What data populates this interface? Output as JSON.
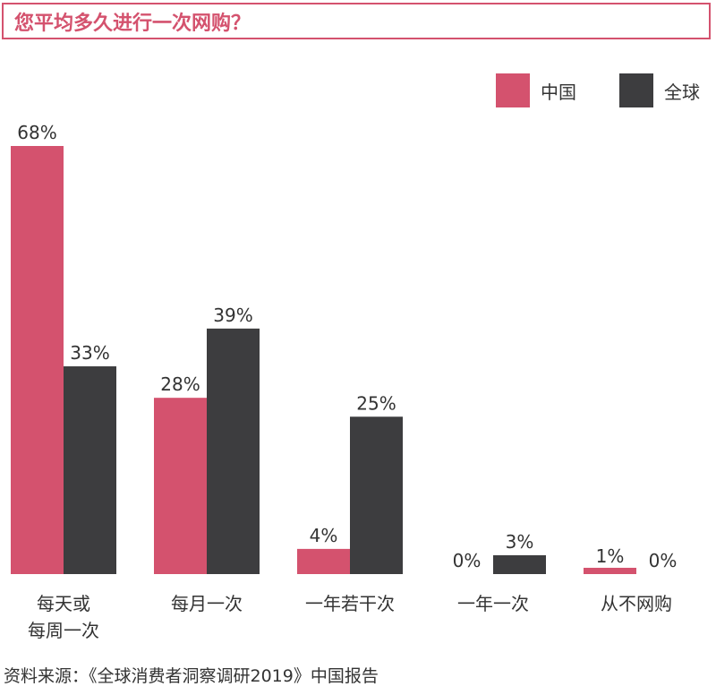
{
  "title": "您平均多久进行一次网购？",
  "source": "资料来源：《全球消费者洞察调研2019》中国报告",
  "colors": {
    "china": "#d4526e",
    "global": "#3d3d3f",
    "text": "#333333"
  },
  "chart_data": {
    "type": "bar",
    "categories": [
      [
        "每天或",
        "每周一次"
      ],
      [
        "每月一次"
      ],
      [
        "一年若干次"
      ],
      [
        "一年一次"
      ],
      [
        "从不网购"
      ]
    ],
    "series": [
      {
        "name": "中国",
        "values": [
          68,
          28,
          4,
          0,
          1
        ],
        "labels": [
          "68%",
          "28%",
          "4%",
          "0%",
          "1%"
        ]
      },
      {
        "name": "全球",
        "values": [
          33,
          39,
          25,
          3,
          0
        ],
        "labels": [
          "33%",
          "39%",
          "25%",
          "3%",
          "0%"
        ]
      }
    ],
    "xlabel": "",
    "ylabel": "",
    "ylim": [
      0,
      68
    ],
    "grid": false,
    "legend_position": "top-right"
  }
}
